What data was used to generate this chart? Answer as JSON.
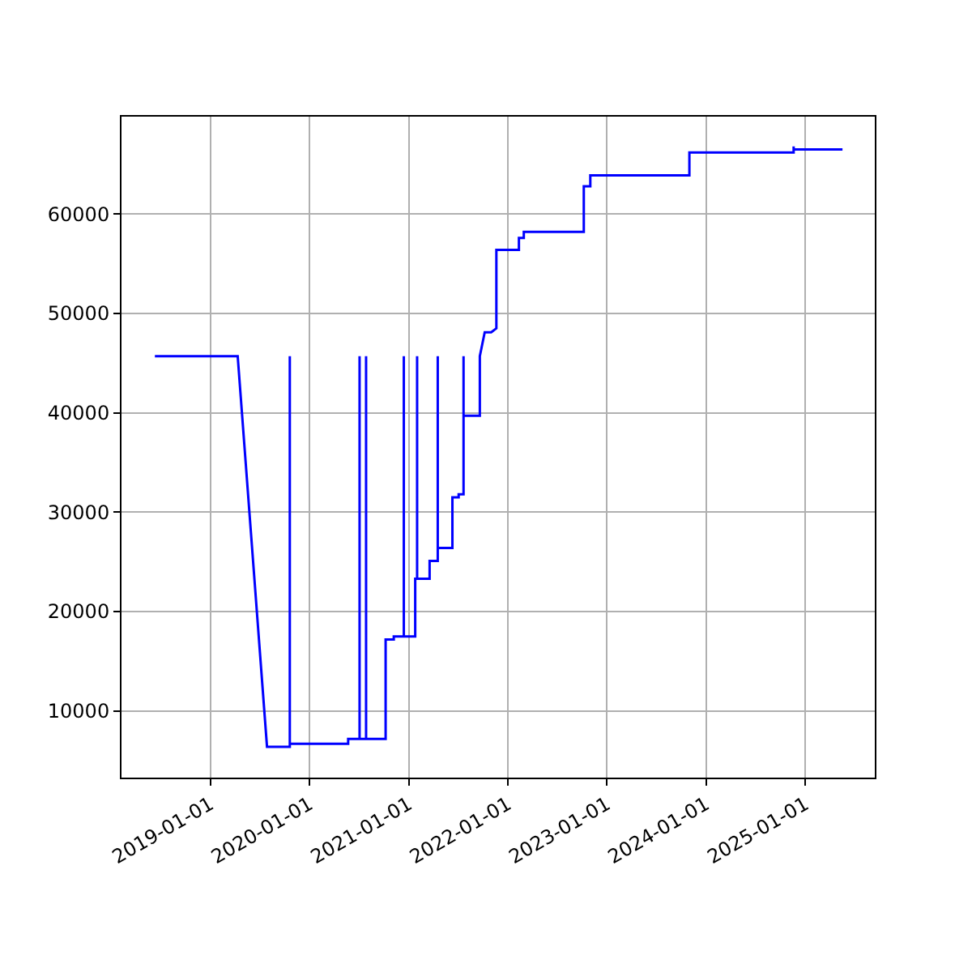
{
  "chart_data": {
    "type": "line",
    "x": [
      "2018-06-11",
      "2019-04-12",
      "2019-07-29",
      "2019-10-21",
      "2019-10-21",
      "2019-10-21",
      "2020-05-23",
      "2020-05-23",
      "2020-07-04",
      "2020-07-04",
      "2020-07-04",
      "2020-07-28",
      "2020-07-28",
      "2020-07-28",
      "2020-10-08",
      "2020-10-08",
      "2020-11-07",
      "2020-11-07",
      "2020-12-14",
      "2020-12-14",
      "2020-12-14",
      "2021-01-25",
      "2021-01-25",
      "2021-02-01",
      "2021-02-01",
      "2021-02-01",
      "2021-03-19",
      "2021-03-19",
      "2021-04-18",
      "2021-04-18",
      "2021-04-18",
      "2021-06-11",
      "2021-06-11",
      "2021-07-04",
      "2021-07-04",
      "2021-07-22",
      "2021-07-22",
      "2021-07-22",
      "2021-09-20",
      "2021-09-20",
      "2021-10-08",
      "2021-11-01",
      "2021-11-20",
      "2021-11-20",
      "2022-02-11",
      "2022-02-11",
      "2022-03-01",
      "2022-03-01",
      "2022-10-08",
      "2022-10-08",
      "2022-11-01",
      "2022-11-01",
      "2023-11-01",
      "2023-11-01",
      "2024-11-19",
      "2024-11-19",
      "2024-11-19",
      "2025-05-18"
    ],
    "series": [
      {
        "color": "#0000ff",
        "values": [
          45700,
          45700,
          6400,
          6400,
          45700,
          6700,
          6700,
          7200,
          7200,
          45700,
          7200,
          7200,
          45700,
          7200,
          7200,
          17200,
          17200,
          17500,
          17500,
          45700,
          17500,
          17500,
          23300,
          23300,
          45700,
          23300,
          23300,
          25100,
          25100,
          45700,
          26400,
          26400,
          31500,
          31500,
          31800,
          31800,
          45700,
          39700,
          39700,
          45700,
          48100,
          48100,
          48500,
          56400,
          56400,
          57600,
          57600,
          58200,
          58200,
          62800,
          62800,
          63900,
          63900,
          66200,
          66200,
          66800,
          66500,
          66500
        ]
      }
    ],
    "xlim": [
      "2018-02-08",
      "2025-09-14"
    ],
    "xticks": [
      {
        "value": "2019-01-01",
        "label": "2019-01-01"
      },
      {
        "value": "2020-01-01",
        "label": "2020-01-01"
      },
      {
        "value": "2021-01-01",
        "label": "2021-01-01"
      },
      {
        "value": "2022-01-01",
        "label": "2022-01-01"
      },
      {
        "value": "2023-01-01",
        "label": "2023-01-01"
      },
      {
        "value": "2024-01-01",
        "label": "2024-01-01"
      },
      {
        "value": "2025-01-01",
        "label": "2025-01-01"
      }
    ],
    "ylim": [
      3300,
      69800
    ],
    "yticks": [
      10000,
      20000,
      30000,
      40000,
      50000,
      60000
    ],
    "grid": true,
    "marker": "none",
    "line_style": "solid"
  }
}
